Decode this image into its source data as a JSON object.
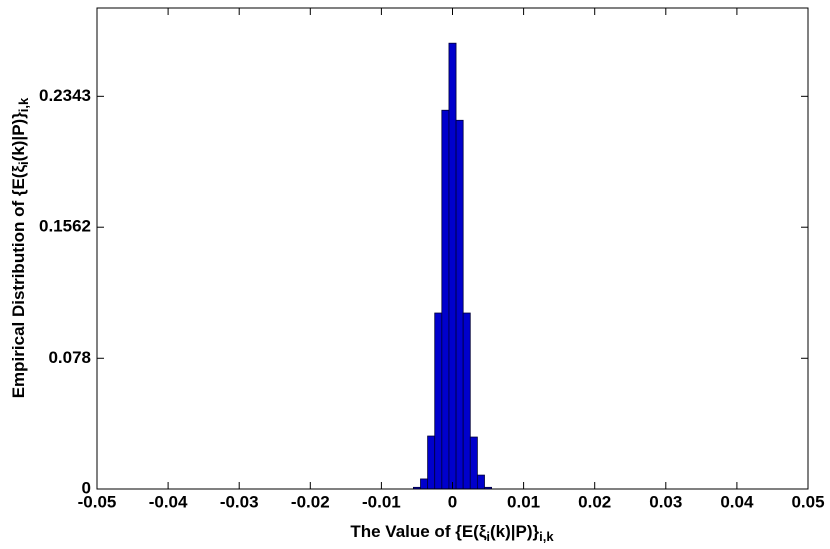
{
  "chart_data": {
    "type": "histogram",
    "x_label_parts": [
      "The Value of {E(ξ",
      "i",
      "(k)|P)}",
      "i,k"
    ],
    "y_label_parts": [
      "Empirical Distribution of {E(ξ",
      "i",
      "(k)|P)}",
      "i,k"
    ],
    "bins": [
      -0.0055,
      -0.0045,
      -0.0035,
      -0.0025,
      -0.0015,
      -0.0005,
      0.0005,
      0.0015,
      0.0025,
      0.0035,
      0.0045,
      0.0055
    ],
    "values": [
      0.001,
      0.006,
      0.0316,
      0.105,
      0.226,
      0.266,
      0.22,
      0.105,
      0.031,
      0.0083,
      0.001
    ],
    "color": "#0000cc",
    "xlim": [
      -0.05,
      0.05
    ],
    "xticks": [
      -0.05,
      -0.04,
      -0.03,
      -0.02,
      -0.01,
      0,
      0.01,
      0.02,
      0.03,
      0.04,
      0.05
    ],
    "ylim": [
      0,
      0.287
    ],
    "yticks": [
      0,
      0.078,
      0.1562,
      0.2343
    ]
  }
}
